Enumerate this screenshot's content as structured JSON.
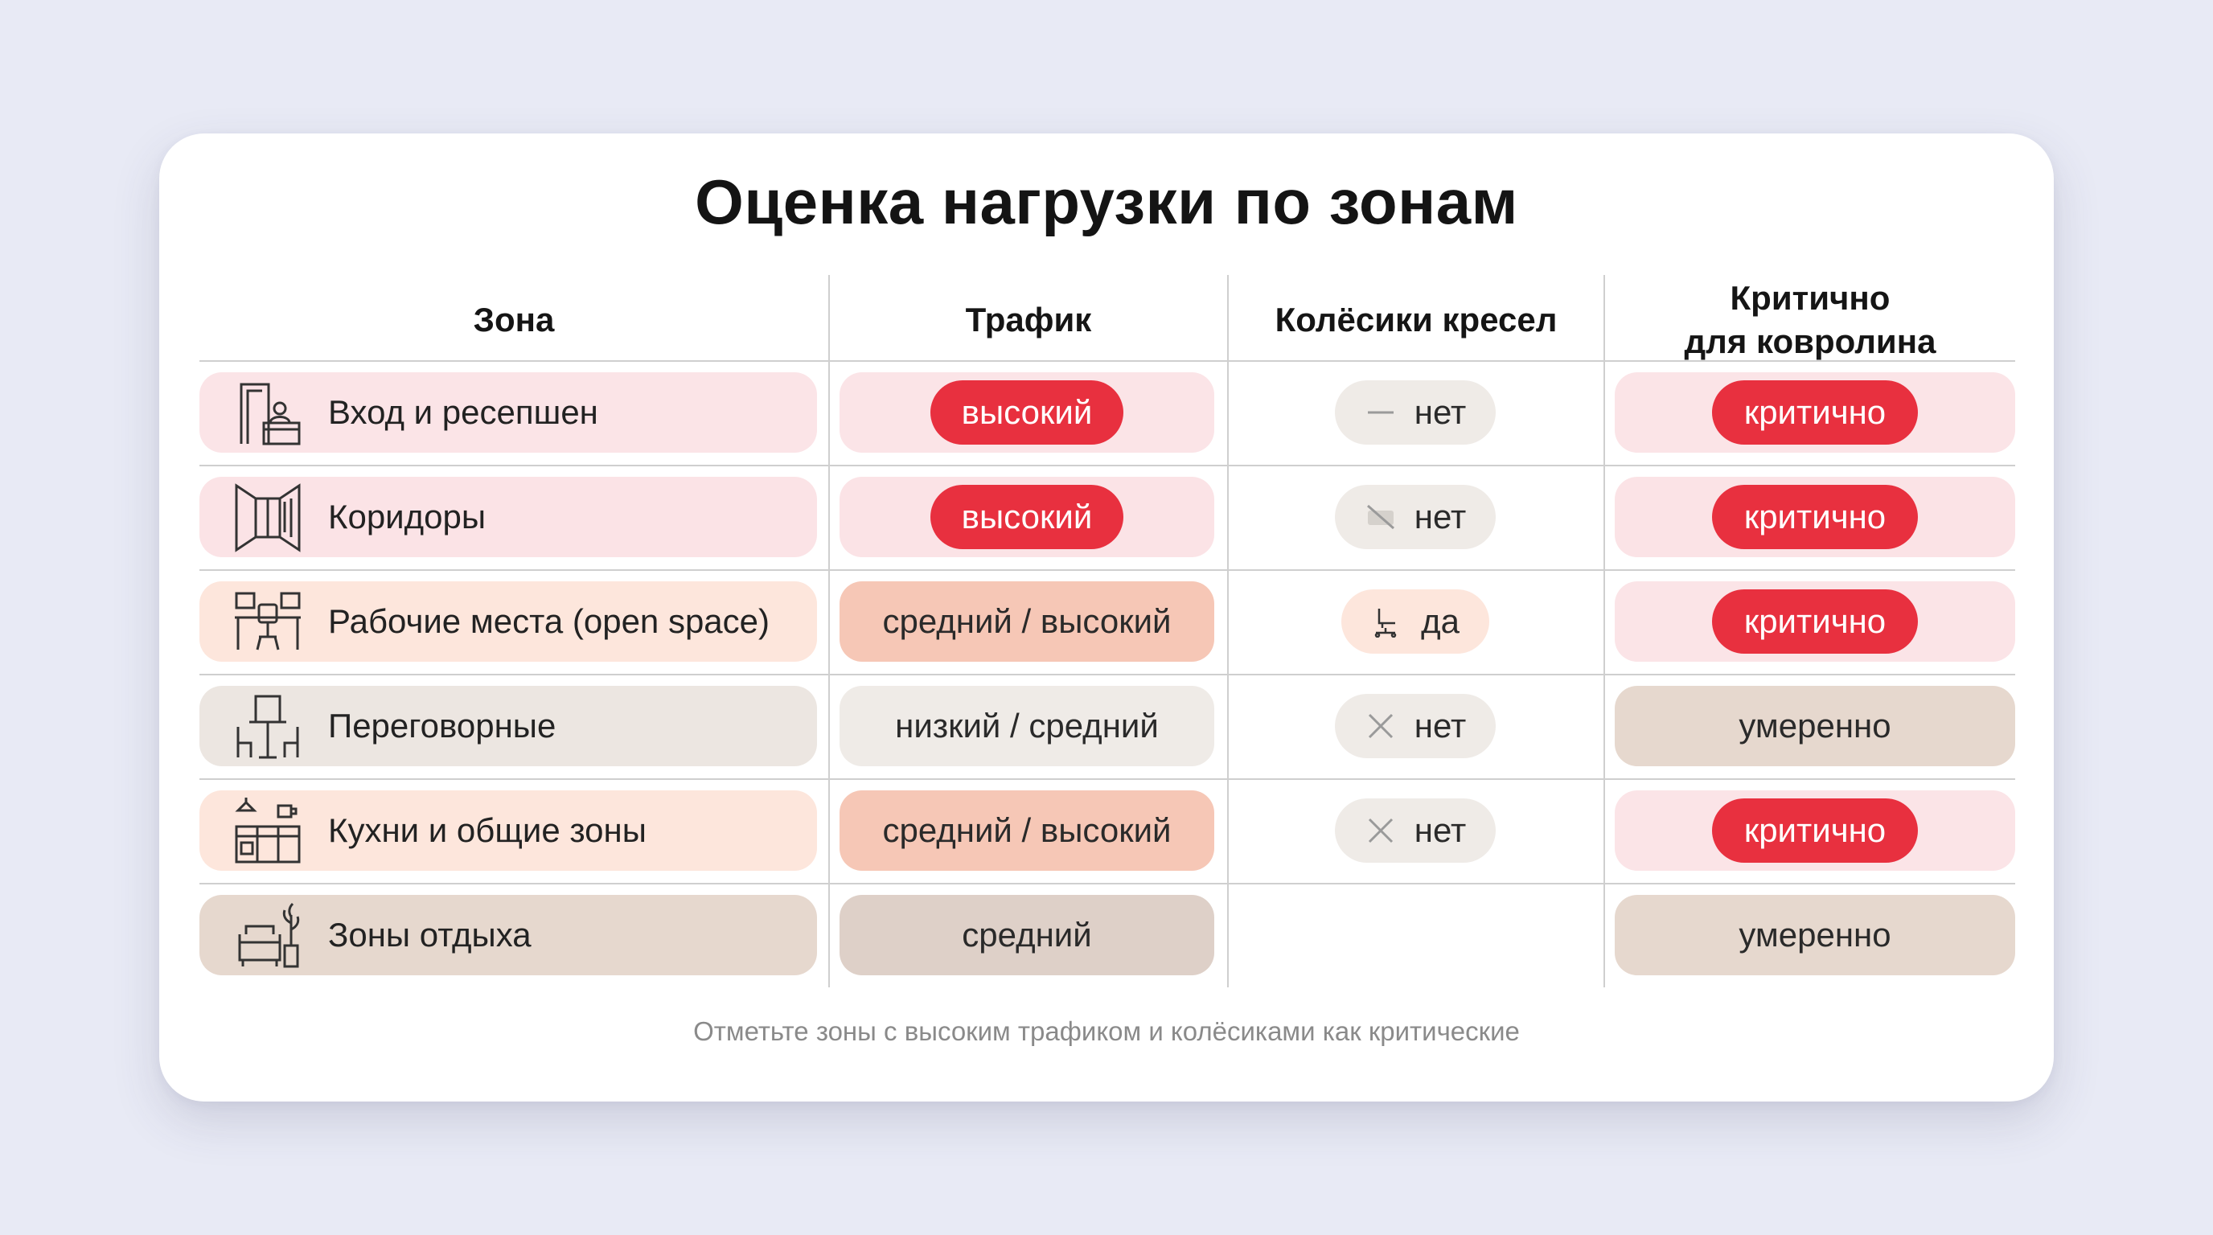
{
  "title": "Оценка нагрузки по зонам",
  "headers": {
    "zone": "Зона",
    "traffic": "Трафик",
    "wheels": "Колёсики кресел",
    "critical_line1": "Критично",
    "critical_line2": "для ковролина"
  },
  "rows": [
    {
      "zone": "Вход и ресепшен",
      "zone_icon": "reception-desk-icon",
      "traffic": "высокий",
      "wheels": "нет",
      "wheels_icon": "dash-icon",
      "critical": "критично"
    },
    {
      "zone": "Коридоры",
      "zone_icon": "corridor-icon",
      "traffic": "высокий",
      "wheels": "нет",
      "wheels_icon": "no-wheels-icon",
      "critical": "критично"
    },
    {
      "zone": "Рабочие места (open space)",
      "zone_icon": "workstations-icon",
      "traffic": "средний / высокий",
      "wheels": "да",
      "wheels_icon": "office-chair-icon",
      "critical": "критично"
    },
    {
      "zone": "Переговорные",
      "zone_icon": "meeting-table-icon",
      "traffic": "низкий / средний",
      "wheels": "нет",
      "wheels_icon": "cross-icon",
      "critical": "умеренно"
    },
    {
      "zone": "Кухни и общие зоны",
      "zone_icon": "kitchen-icon",
      "traffic": "средний / высокий",
      "wheels": "нет",
      "wheels_icon": "cross-icon",
      "critical": "критично"
    },
    {
      "zone": "Зоны отдыха",
      "zone_icon": "sofa-plant-icon",
      "traffic": "средний",
      "wheels": "",
      "wheels_icon": "",
      "critical": "умеренно"
    }
  ],
  "footnote": "Отметьте зоны с высоким трафиком и колёсиками как критические",
  "colors": {
    "critical_badge": "#e8303f",
    "high_traffic_badge": "#e8303f",
    "card_background": "#ffffff",
    "page_background": "#e8eaf5"
  }
}
